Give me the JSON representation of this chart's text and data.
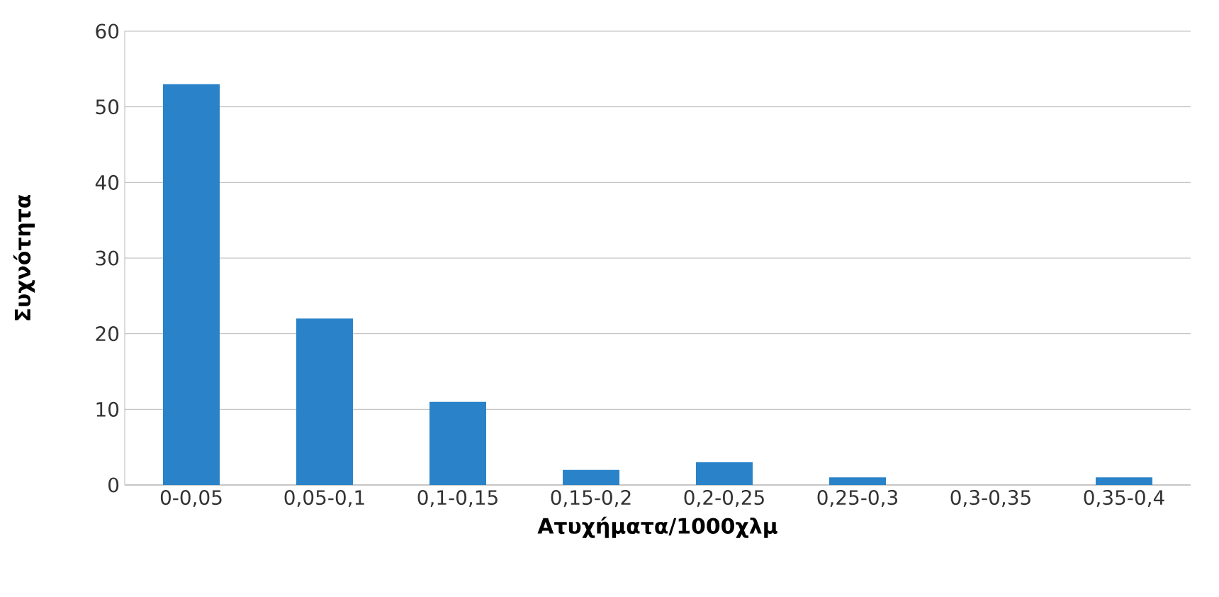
{
  "chart_data": {
    "type": "bar",
    "xlabel": "Ατυχήματα/1000χλμ",
    "ylabel": "Συχνότητα",
    "categories": [
      "0-0,05",
      "0,05-0,1",
      "0,1-0,15",
      "0,15-0,2",
      "0,2-0,25",
      "0,25-0,3",
      "0,3-0,35",
      "0,35-0,4"
    ],
    "values": [
      53,
      22,
      11,
      2,
      3,
      1,
      0,
      1
    ],
    "color": "#2a83c9",
    "ylim": [
      0,
      60
    ],
    "yticks": [
      0,
      10,
      20,
      30,
      40,
      50,
      60
    ],
    "grid": "y"
  }
}
